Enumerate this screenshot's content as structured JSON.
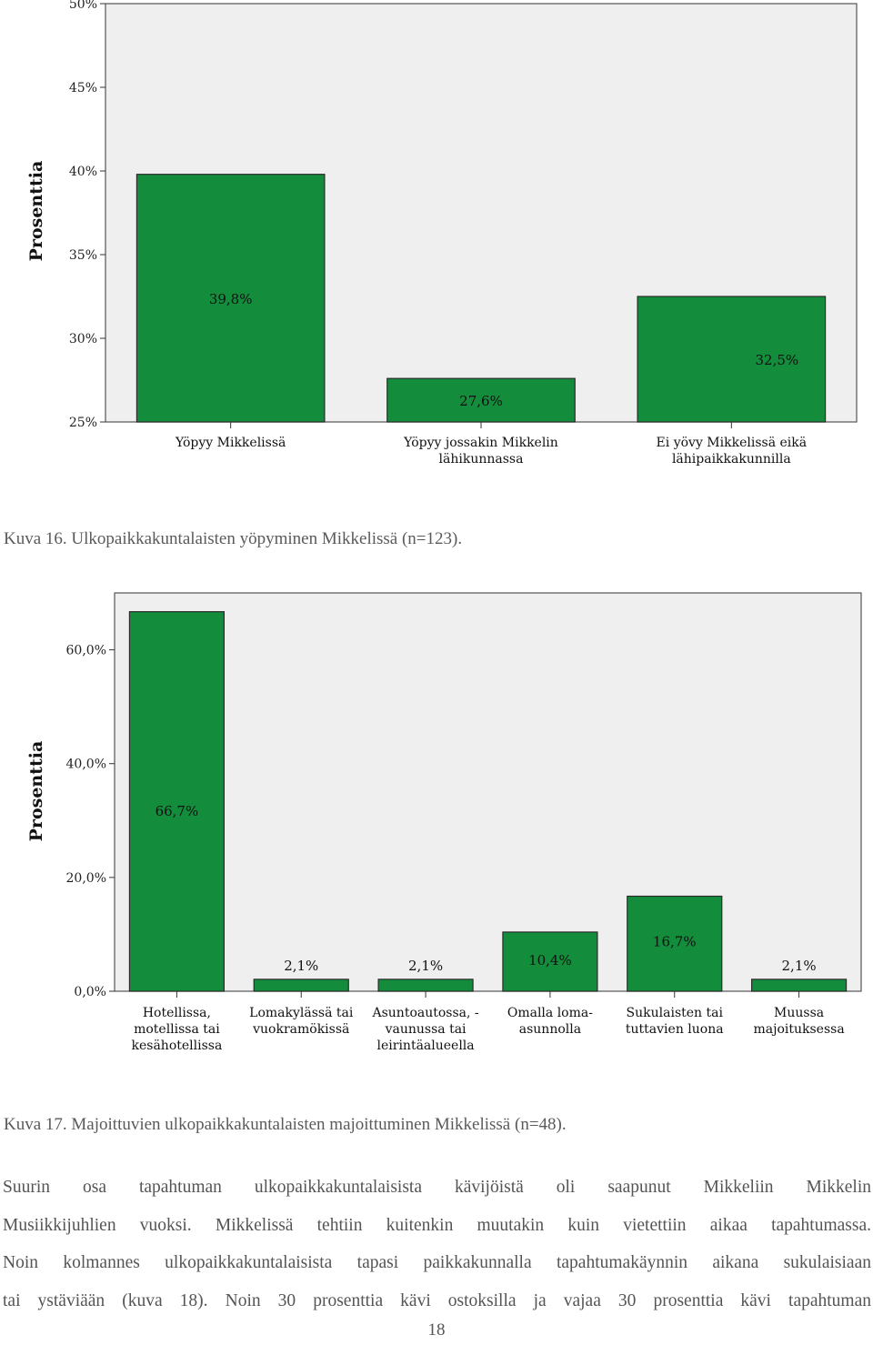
{
  "chart_data": [
    {
      "type": "bar",
      "categories": [
        "Yöpyy Mikkelissä",
        "Yöpyy jossakin Mikkelin lähikunnassa",
        "Ei yövy Mikkelissä eikä lähipaikkakunnilla"
      ],
      "category_lines": [
        [
          "Yöpyy Mikkelissä"
        ],
        [
          "Yöpyy jossakin Mikkelin",
          "lähikunnassa"
        ],
        [
          "Ei yövy Mikkelissä eikä",
          "lähipaikkakunnilla"
        ]
      ],
      "values": [
        39.8,
        27.6,
        32.5
      ],
      "data_labels": [
        "39,8%",
        "27,6%",
        "32,5%"
      ],
      "ylabel": "Prosenttia",
      "ylim": [
        25,
        50
      ],
      "yticks": [
        25,
        30,
        35,
        40,
        45,
        50
      ],
      "ytick_labels": [
        "25%",
        "30%",
        "35%",
        "40%",
        "45%",
        "50%"
      ],
      "bar_color": "#138c3c",
      "plot_background": "#efefef"
    },
    {
      "type": "bar",
      "categories": [
        "Hotellissa, motellissa tai kesähotellissa",
        "Lomakylässä tai vuokramökissä",
        "Asuntoautossa, -vaunussa tai leirintäalueella",
        "Omalla loma-asunnolla",
        "Sukulaisten tai tuttavien luona",
        "Muussa majoituksessa"
      ],
      "category_lines": [
        [
          "Hotellissa,",
          "motellissa tai",
          "kesähotellissa"
        ],
        [
          "Lomakylässä tai",
          "vuokramökissä"
        ],
        [
          "Asuntoautossa, -",
          "vaunussa tai",
          "leirintäalueella"
        ],
        [
          "Omalla loma-",
          "asunnolla"
        ],
        [
          "Sukulaisten tai",
          "tuttavien luona"
        ],
        [
          "Muussa",
          "majoituksessa"
        ]
      ],
      "values": [
        66.7,
        2.1,
        2.1,
        10.4,
        16.7,
        2.1
      ],
      "data_labels": [
        "66,7%",
        "2,1%",
        "2,1%",
        "10,4%",
        "16,7%",
        "2,1%"
      ],
      "ylabel": "Prosenttia",
      "ylim": [
        0,
        70
      ],
      "yticks": [
        0,
        20,
        40,
        60
      ],
      "ytick_labels": [
        "0,0%",
        "20,0%",
        "40,0%",
        "60,0%"
      ],
      "bar_color": "#138c3c",
      "plot_background": "#efefef"
    }
  ],
  "captions": {
    "fig16": "Kuva 16. Ulkopaikkakuntalaisten yöpyminen Mikkelissä (n=123).",
    "fig17": "Kuva 17. Majoittuvien ulkopaikkakuntalaisten majoittuminen Mikkelissä (n=48)."
  },
  "body": {
    "line1": "Suurin osa tapahtuman ulkopaikkakuntalaisista kävijöistä oli saapunut Mikkeliin Mikkelin",
    "line2": "Musiikkijuhlien vuoksi. Mikkelissä tehtiin kuitenkin muutakin kuin vietettiin aikaa tapahtumassa.",
    "line3": "Noin kolmannes ulkopaikkakuntalaisista tapasi paikkakunnalla tapahtumakäynnin aikana sukulaisiaan",
    "line4": "tai ystäviään (kuva 18). Noin 30 prosenttia kävi ostoksilla ja vajaa 30 prosenttia kävi tapahtuman"
  },
  "page_number": "18"
}
